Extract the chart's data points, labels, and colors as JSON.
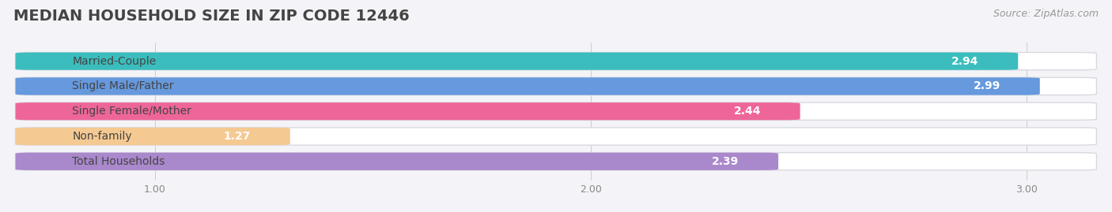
{
  "title": "MEDIAN HOUSEHOLD SIZE IN ZIP CODE 12446",
  "source": "Source: ZipAtlas.com",
  "categories": [
    "Married-Couple",
    "Single Male/Father",
    "Single Female/Mother",
    "Non-family",
    "Total Households"
  ],
  "values": [
    2.94,
    2.99,
    2.44,
    1.27,
    2.39
  ],
  "bar_colors": [
    "#3bbdbd",
    "#6699dd",
    "#ee6699",
    "#f5c992",
    "#aa88cc"
  ],
  "xmin": 0.72,
  "xmax": 3.12,
  "xlim_display": [
    0.72,
    3.12
  ],
  "xticks": [
    1.0,
    2.0,
    3.0
  ],
  "bar_height": 0.62,
  "track_color": "#e8e8ee",
  "track_border_color": "#d8d8e0",
  "background_color": "#f4f4f8",
  "title_fontsize": 14,
  "label_fontsize": 10,
  "value_fontsize": 10,
  "source_fontsize": 9,
  "title_color": "#444444",
  "label_color": "#444444",
  "source_color": "#999999",
  "tick_color": "#888888"
}
